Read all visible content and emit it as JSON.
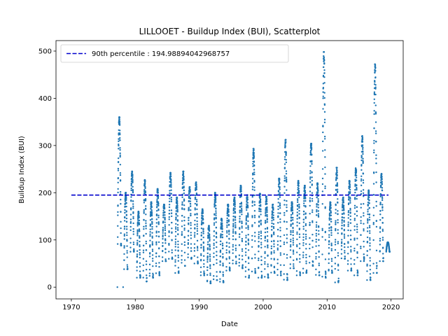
{
  "chart_data": {
    "type": "scatter",
    "title": "LILLOOET - Buildup Index (BUI), Scatterplot",
    "xlabel": "Date",
    "ylabel": "Buildup Index (BUI)",
    "xlim": [
      1967.6,
      2021.9
    ],
    "ylim": [
      -24.9,
      522.2
    ],
    "xticks": [
      1970,
      1980,
      1990,
      2000,
      2010,
      2020
    ],
    "yticks": [
      0,
      100,
      200,
      300,
      400,
      500
    ],
    "grid": false,
    "legend_position": "top-left",
    "point_color": "#1f77b4",
    "threshold": {
      "label": "90th percentile : 194.98894042968757",
      "value": 194.98894042968757,
      "x_range": [
        1970.0,
        2019.6
      ],
      "color": "#0000cd",
      "style": "dashed"
    },
    "outliers": [
      {
        "x": 1977.2,
        "y": 0
      },
      {
        "x": 1978.1,
        "y": 0
      }
    ],
    "seasons": [
      {
        "year": 1977,
        "low": 88,
        "peak": 360
      },
      {
        "year": 1978,
        "low": 38,
        "peak": 200
      },
      {
        "year": 1979,
        "low": 75,
        "peak": 245
      },
      {
        "year": 1980,
        "low": 20,
        "peak": 160
      },
      {
        "year": 1981,
        "low": 12,
        "peak": 227
      },
      {
        "year": 1982,
        "low": 20,
        "peak": 180
      },
      {
        "year": 1983,
        "low": 25,
        "peak": 208
      },
      {
        "year": 1984,
        "low": 55,
        "peak": 175
      },
      {
        "year": 1985,
        "low": 60,
        "peak": 242
      },
      {
        "year": 1986,
        "low": 30,
        "peak": 190
      },
      {
        "year": 1987,
        "low": 45,
        "peak": 245
      },
      {
        "year": 1988,
        "low": 60,
        "peak": 212
      },
      {
        "year": 1989,
        "low": 50,
        "peak": 222
      },
      {
        "year": 1990,
        "low": 25,
        "peak": 165
      },
      {
        "year": 1991,
        "low": 8,
        "peak": 130
      },
      {
        "year": 1992,
        "low": 15,
        "peak": 200
      },
      {
        "year": 1993,
        "low": 10,
        "peak": 145
      },
      {
        "year": 1994,
        "low": 35,
        "peak": 175
      },
      {
        "year": 1995,
        "low": 50,
        "peak": 190
      },
      {
        "year": 1996,
        "low": 40,
        "peak": 215
      },
      {
        "year": 1997,
        "low": 20,
        "peak": 195
      },
      {
        "year": 1998,
        "low": 30,
        "peak": 293
      },
      {
        "year": 1999,
        "low": 20,
        "peak": 198
      },
      {
        "year": 2000,
        "low": 20,
        "peak": 192
      },
      {
        "year": 2001,
        "low": 30,
        "peak": 175
      },
      {
        "year": 2002,
        "low": 25,
        "peak": 230
      },
      {
        "year": 2003,
        "low": 15,
        "peak": 312
      },
      {
        "year": 2004,
        "low": 40,
        "peak": 180
      },
      {
        "year": 2005,
        "low": 25,
        "peak": 225
      },
      {
        "year": 2006,
        "low": 30,
        "peak": 215
      },
      {
        "year": 2007,
        "low": 45,
        "peak": 304
      },
      {
        "year": 2008,
        "low": 25,
        "peak": 220
      },
      {
        "year": 2009,
        "low": 20,
        "peak": 498
      },
      {
        "year": 2010,
        "low": 30,
        "peak": 180
      },
      {
        "year": 2011,
        "low": 10,
        "peak": 253
      },
      {
        "year": 2012,
        "low": 60,
        "peak": 190
      },
      {
        "year": 2013,
        "low": 35,
        "peak": 225
      },
      {
        "year": 2014,
        "low": 25,
        "peak": 252
      },
      {
        "year": 2015,
        "low": 55,
        "peak": 320
      },
      {
        "year": 2016,
        "low": 15,
        "peak": 205
      },
      {
        "year": 2017,
        "low": 30,
        "peak": 472
      },
      {
        "year": 2018,
        "low": 55,
        "peak": 240
      },
      {
        "year": 2019,
        "low": 75,
        "peak": 95
      }
    ]
  }
}
